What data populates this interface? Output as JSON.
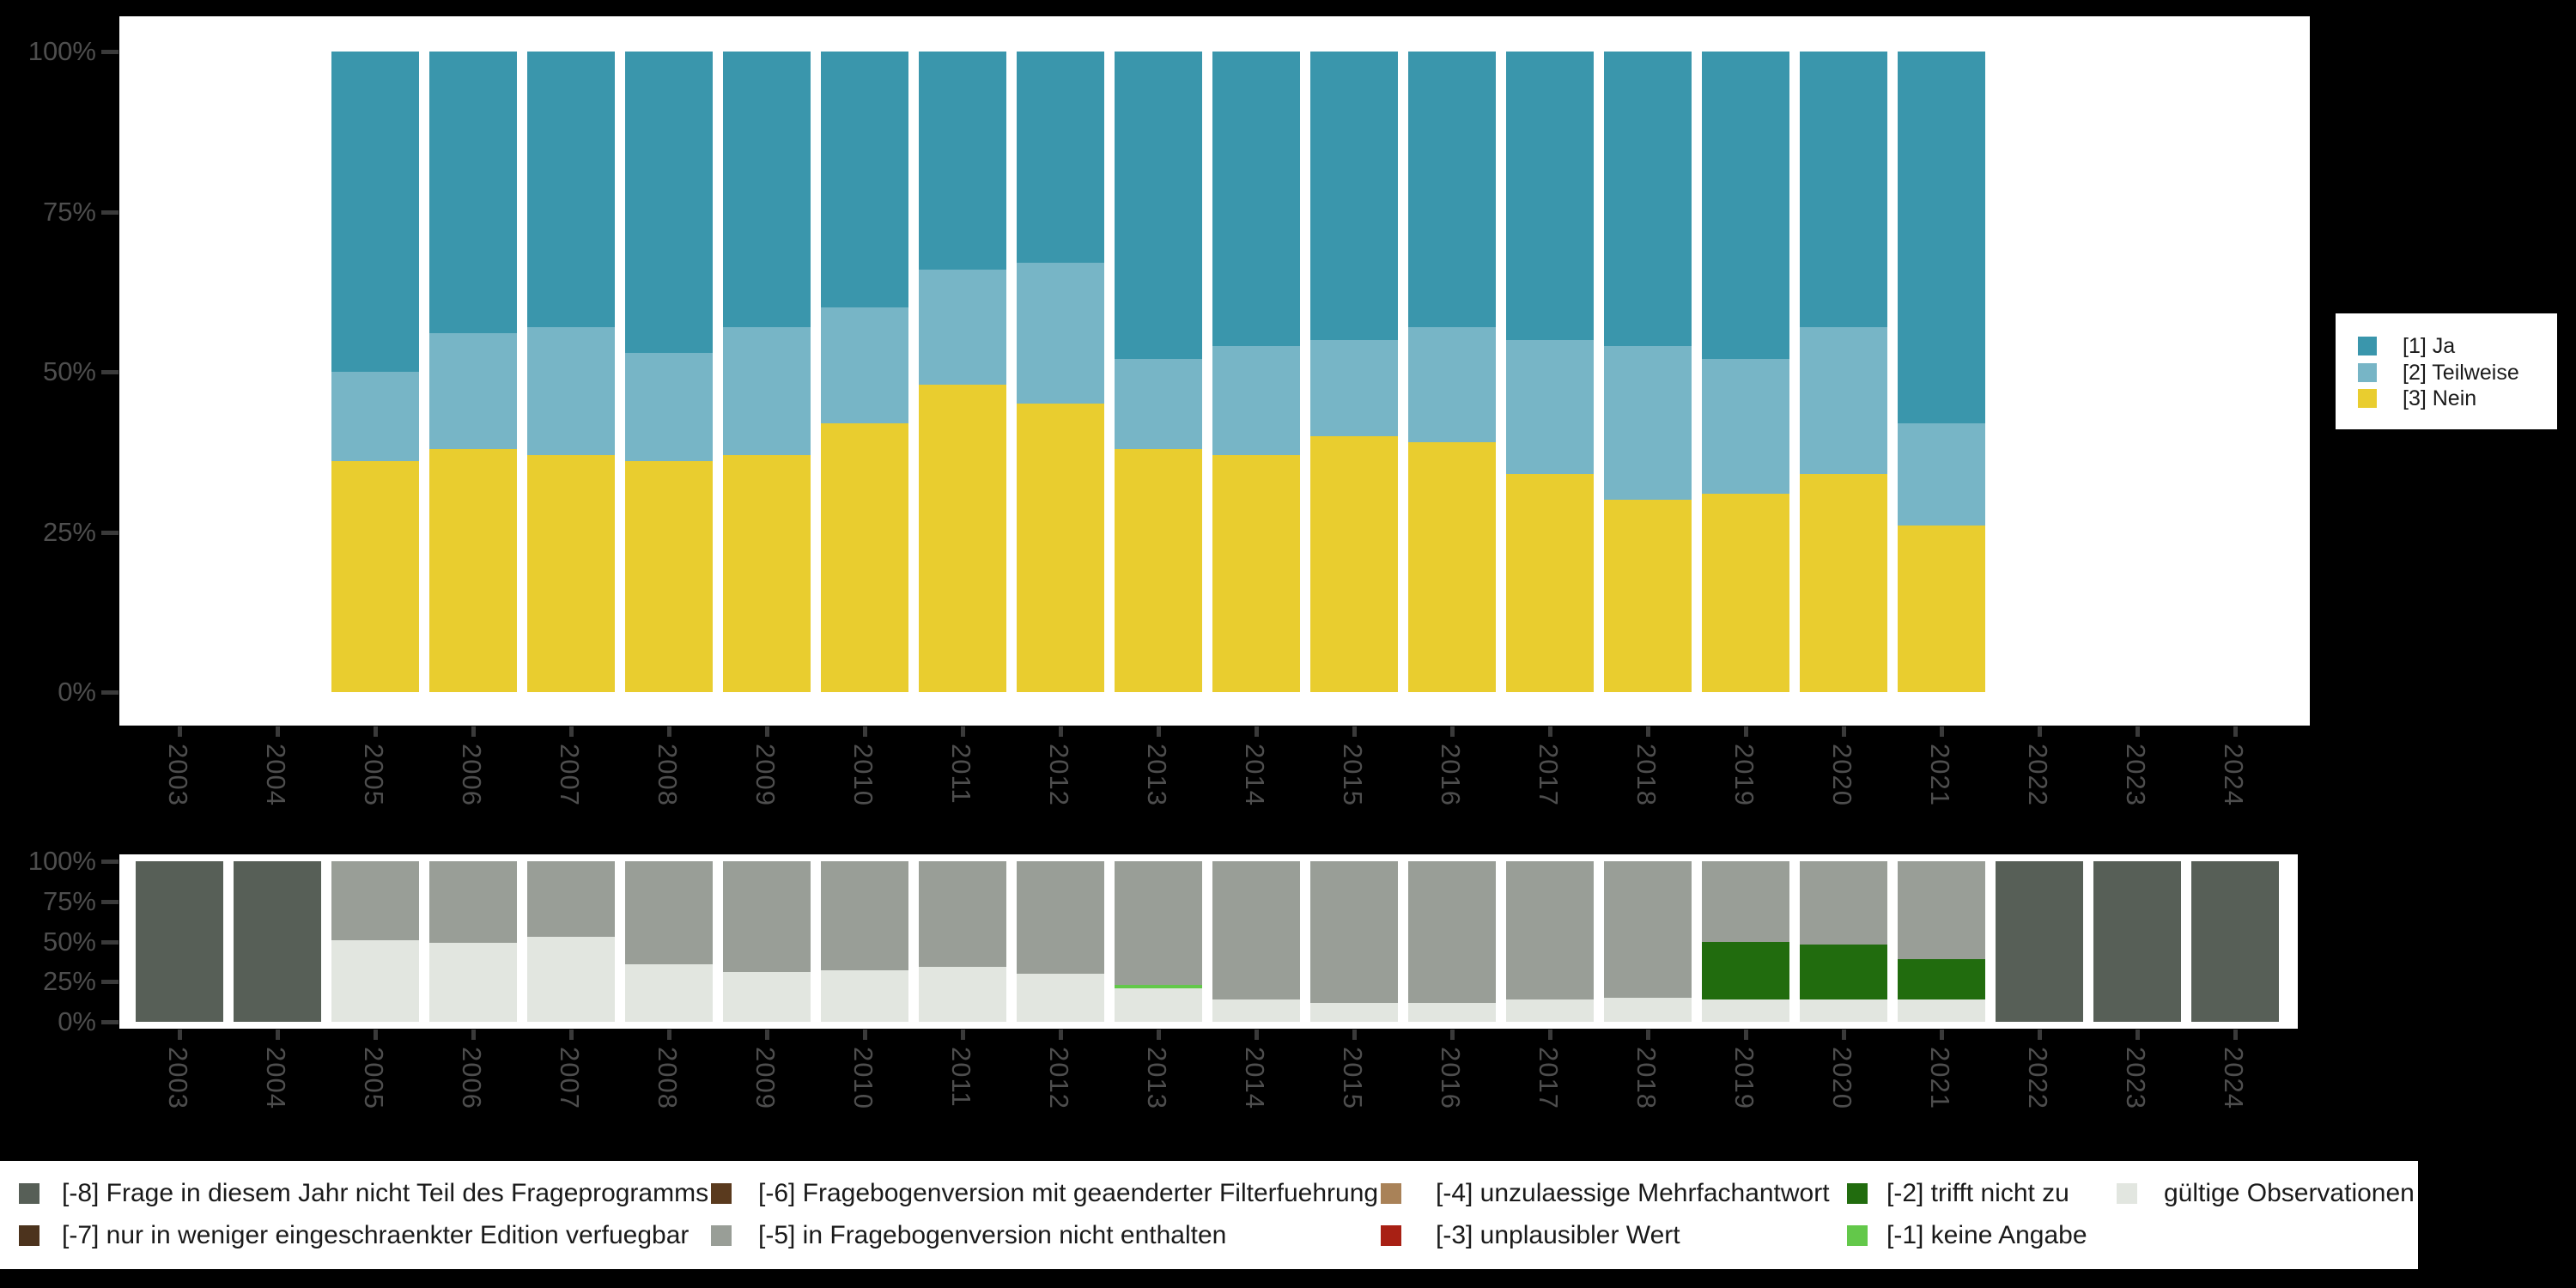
{
  "window": {
    "background": "#000000"
  },
  "palette": {
    "ja": "#3a96ac",
    "teilweise": "#77b5c6",
    "nein": "#e9cd2f",
    "-8": "#575f57",
    "-7": "#4c331d",
    "-6": "#5a3a1e",
    "-5": "#999e97",
    "-4": "#a98258",
    "-3": "#a82014",
    "-2": "#216c0e",
    "-1": "#63c84a",
    "valid": "#e2e6e0",
    "axis_text": "#4e4e4e",
    "tick": "#3a3a3a",
    "panel": "#ffffff",
    "legend_text": "#1a1a1a"
  },
  "axis": {
    "y_tick_labels": [
      "100%",
      "75%",
      "50%",
      "25%",
      "0%"
    ],
    "years": [
      "2003",
      "2004",
      "2005",
      "2006",
      "2007",
      "2008",
      "2009",
      "2010",
      "2011",
      "2012",
      "2013",
      "2014",
      "2015",
      "2016",
      "2017",
      "2018",
      "2019",
      "2020",
      "2021",
      "2022",
      "2023",
      "2024"
    ]
  },
  "chart_data": [
    {
      "id": "answers",
      "type": "bar",
      "stacked": true,
      "unit": "percent",
      "ylim": [
        0,
        100
      ],
      "y_tick_labels": [
        "100%",
        "75%",
        "50%",
        "25%",
        "0%"
      ],
      "categories": [
        "2003",
        "2004",
        "2005",
        "2006",
        "2007",
        "2008",
        "2009",
        "2010",
        "2011",
        "2012",
        "2013",
        "2014",
        "2015",
        "2016",
        "2017",
        "2018",
        "2019",
        "2020",
        "2021",
        "2022",
        "2023",
        "2024"
      ],
      "series": [
        {
          "name": "[1] Ja",
          "color_key": "ja",
          "values": [
            null,
            null,
            50,
            44,
            43,
            47,
            43,
            40,
            34,
            33,
            48,
            46,
            45,
            43,
            45,
            46,
            48,
            43,
            58,
            null,
            null,
            null
          ]
        },
        {
          "name": "[2] Teilweise",
          "color_key": "teilweise",
          "values": [
            null,
            null,
            14,
            18,
            20,
            17,
            20,
            18,
            18,
            22,
            14,
            17,
            15,
            18,
            21,
            24,
            21,
            23,
            16,
            null,
            null,
            null
          ]
        },
        {
          "name": "[3] Nein",
          "color_key": "nein",
          "values": [
            null,
            null,
            36,
            38,
            37,
            36,
            37,
            42,
            48,
            45,
            38,
            37,
            40,
            39,
            34,
            30,
            31,
            34,
            26,
            null,
            null,
            null
          ]
        }
      ],
      "legend_position": "right",
      "grid": false
    },
    {
      "id": "missings",
      "type": "bar",
      "stacked": true,
      "unit": "percent",
      "ylim": [
        0,
        100
      ],
      "y_tick_labels": [
        "100%",
        "75%",
        "50%",
        "25%",
        "0%"
      ],
      "categories": [
        "2003",
        "2004",
        "2005",
        "2006",
        "2007",
        "2008",
        "2009",
        "2010",
        "2011",
        "2012",
        "2013",
        "2014",
        "2015",
        "2016",
        "2017",
        "2018",
        "2019",
        "2020",
        "2021",
        "2022",
        "2023",
        "2024"
      ],
      "segment_order": "top-to-bottom",
      "bars": [
        [
          [
            "-8",
            100
          ]
        ],
        [
          [
            "-8",
            100
          ]
        ],
        [
          [
            "-5",
            49
          ],
          [
            "valid",
            51
          ]
        ],
        [
          [
            "-5",
            51
          ],
          [
            "valid",
            49
          ]
        ],
        [
          [
            "-5",
            47
          ],
          [
            "valid",
            53
          ]
        ],
        [
          [
            "-5",
            64
          ],
          [
            "valid",
            36
          ]
        ],
        [
          [
            "-5",
            69
          ],
          [
            "valid",
            31
          ]
        ],
        [
          [
            "-5",
            68
          ],
          [
            "valid",
            32
          ]
        ],
        [
          [
            "-5",
            66
          ],
          [
            "valid",
            34
          ]
        ],
        [
          [
            "-5",
            70
          ],
          [
            "valid",
            30
          ]
        ],
        [
          [
            "-5",
            77
          ],
          [
            "-1",
            2
          ],
          [
            "valid",
            21
          ]
        ],
        [
          [
            "-5",
            86
          ],
          [
            "valid",
            14
          ]
        ],
        [
          [
            "-5",
            88
          ],
          [
            "valid",
            12
          ]
        ],
        [
          [
            "-5",
            88
          ],
          [
            "valid",
            12
          ]
        ],
        [
          [
            "-5",
            86
          ],
          [
            "valid",
            14
          ]
        ],
        [
          [
            "-5",
            85
          ],
          [
            "valid",
            15
          ]
        ],
        [
          [
            "-5",
            50
          ],
          [
            "-2",
            36
          ],
          [
            "valid",
            14
          ]
        ],
        [
          [
            "-5",
            52
          ],
          [
            "-2",
            34
          ],
          [
            "valid",
            14
          ]
        ],
        [
          [
            "-5",
            61
          ],
          [
            "-2",
            25
          ],
          [
            "valid",
            14
          ]
        ],
        [
          [
            "-8",
            100
          ]
        ],
        [
          [
            "-8",
            100
          ]
        ],
        [
          [
            "-8",
            100
          ]
        ]
      ],
      "grid": false
    }
  ],
  "legend_right": [
    {
      "color_key": "ja",
      "label": "[1] Ja"
    },
    {
      "color_key": "teilweise",
      "label": "[2] Teilweise"
    },
    {
      "color_key": "nein",
      "label": "[3] Nein"
    }
  ],
  "legend_bottom": {
    "columns": [
      [
        {
          "color_key": "-8",
          "label": "[-8] Frage in diesem Jahr nicht Teil des Frageprogramms"
        },
        {
          "color_key": "-7",
          "label": "[-7] nur in weniger eingeschraenkter Edition verfuegbar"
        }
      ],
      [
        {
          "color_key": "-6",
          "label": "[-6] Fragebogenversion mit geaenderter Filterfuehrung"
        },
        {
          "color_key": "-5",
          "label": "[-5] in Fragebogenversion nicht enthalten"
        }
      ],
      [
        {
          "color_key": "-4",
          "label": "[-4] unzulaessige Mehrfachantwort"
        },
        {
          "color_key": "-3",
          "label": "[-3] unplausibler Wert"
        }
      ],
      [
        {
          "color_key": "-2",
          "label": "[-2] trifft nicht zu"
        },
        {
          "color_key": "-1",
          "label": "[-1] keine Angabe"
        }
      ],
      [
        {
          "color_key": "valid",
          "label": "gültige Observationen"
        }
      ]
    ]
  }
}
